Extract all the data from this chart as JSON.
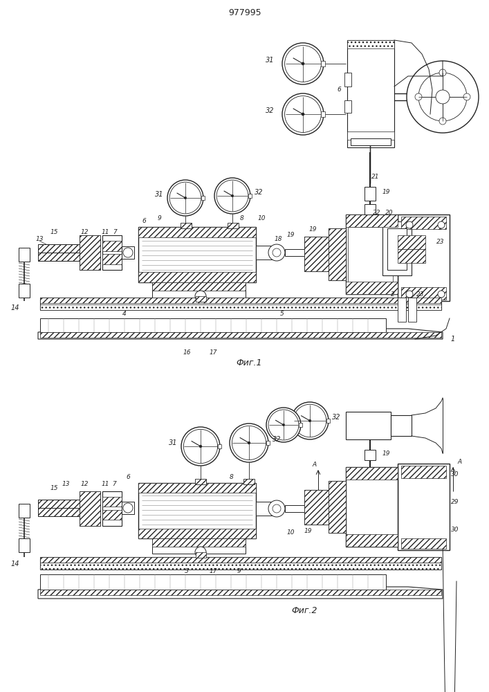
{
  "title": "977995",
  "bg_color": "#ffffff",
  "line_color": "#222222",
  "fig1_caption": "Фиг.1",
  "fig2_caption": "Фиг.2"
}
